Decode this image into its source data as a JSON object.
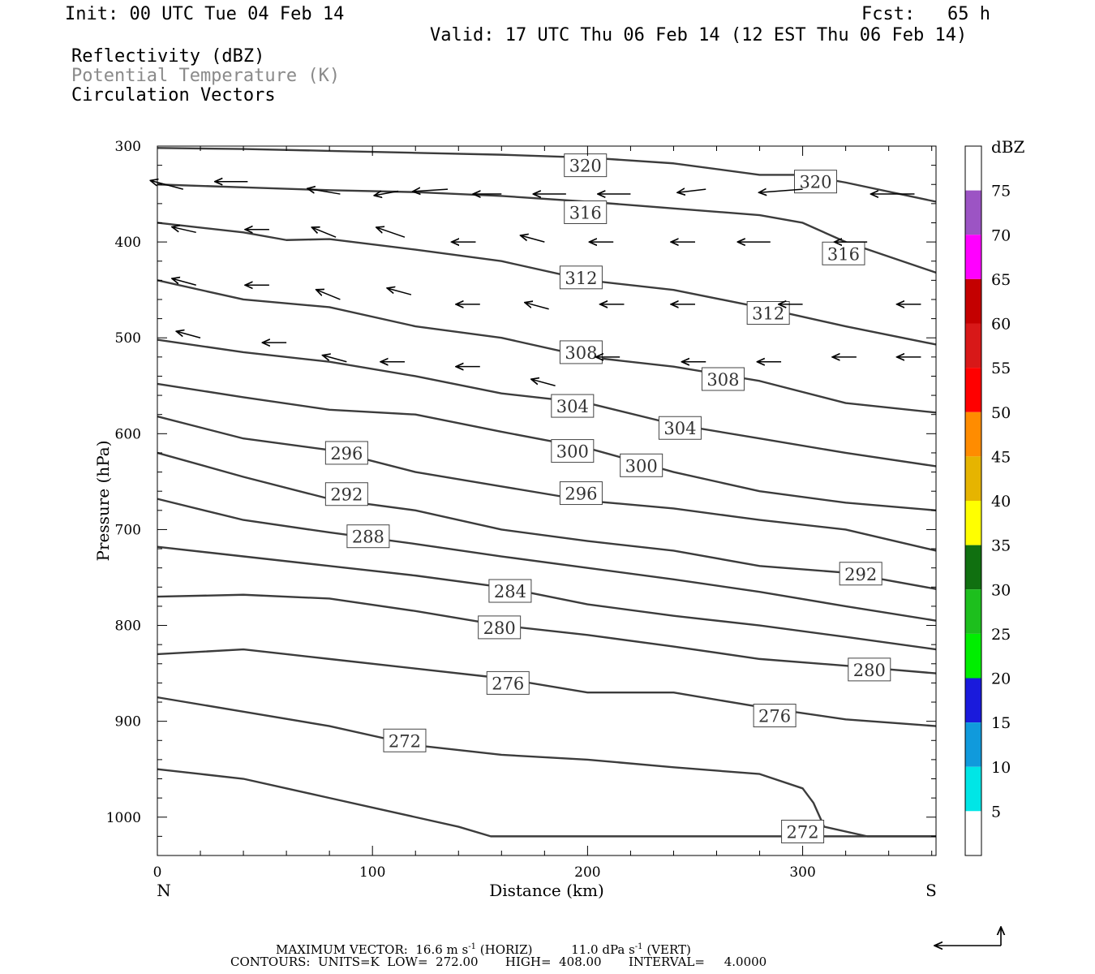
{
  "header": {
    "init": "Init: 00 UTC Tue 04 Feb 14",
    "fcst": "Fcst:   65 h",
    "valid": "Valid: 17 UTC Thu 06 Feb 14 (12 EST Thu 06 Feb 14)",
    "field1": "Reflectivity (dBZ)",
    "field2": "Potential Temperature (K)",
    "field3": "Circulation Vectors"
  },
  "colors": {
    "field2_text": "#8a8a8a",
    "contour": "#3c3c3c",
    "vector": "#000000"
  },
  "chart_data": {
    "type": "line",
    "xlabel": "Distance (km)",
    "ylabel": "Pressure (hPa)",
    "xlim": [
      0,
      362
    ],
    "ylim": [
      1040,
      300
    ],
    "x_ticks": [
      "0",
      "100",
      "200",
      "300"
    ],
    "y_ticks": [
      "300",
      "400",
      "500",
      "600",
      "700",
      "800",
      "900",
      "1000"
    ],
    "x_end_labels": {
      "left": "N",
      "right": "S"
    },
    "x_tick_values": [
      0,
      100,
      200,
      300
    ],
    "y_tick_values": [
      300,
      400,
      500,
      600,
      700,
      800,
      900,
      1000
    ],
    "contour_units": "K",
    "contours": [
      {
        "theta": "320",
        "x": [
          0,
          40,
          80,
          120,
          160,
          200,
          240,
          280,
          300,
          320,
          362
        ],
        "p": [
          302,
          303,
          305,
          307,
          309,
          312,
          318,
          330,
          330,
          338,
          358
        ],
        "labels": [
          {
            "x": 199,
            "p": 320
          },
          {
            "x": 306,
            "p": 337
          }
        ]
      },
      {
        "theta": "316",
        "x": [
          0,
          40,
          80,
          120,
          160,
          200,
          240,
          280,
          300,
          320,
          362
        ],
        "p": [
          340,
          343,
          346,
          348,
          352,
          358,
          365,
          372,
          380,
          400,
          432
        ],
        "labels": [
          {
            "x": 199,
            "p": 369
          },
          {
            "x": 319,
            "p": 412
          }
        ]
      },
      {
        "theta": "312",
        "x": [
          0,
          40,
          60,
          80,
          120,
          160,
          200,
          240,
          280,
          320,
          362
        ],
        "p": [
          380,
          390,
          398,
          397,
          408,
          420,
          440,
          450,
          468,
          488,
          507
        ],
        "labels": [
          {
            "x": 197,
            "p": 437
          },
          {
            "x": 284,
            "p": 474
          }
        ]
      },
      {
        "theta": "308",
        "x": [
          0,
          40,
          80,
          120,
          160,
          200,
          240,
          280,
          320,
          362
        ],
        "p": [
          440,
          460,
          468,
          488,
          500,
          520,
          530,
          545,
          568,
          578
        ],
        "labels": [
          {
            "x": 197,
            "p": 515
          },
          {
            "x": 263,
            "p": 543
          }
        ]
      },
      {
        "theta": "304",
        "x": [
          0,
          40,
          80,
          120,
          160,
          200,
          240,
          280,
          320,
          362
        ],
        "p": [
          502,
          515,
          525,
          540,
          558,
          568,
          590,
          605,
          620,
          634
        ],
        "labels": [
          {
            "x": 193,
            "p": 571
          },
          {
            "x": 243,
            "p": 594
          }
        ]
      },
      {
        "theta": "300",
        "x": [
          0,
          40,
          80,
          120,
          160,
          200,
          240,
          280,
          320,
          362
        ],
        "p": [
          548,
          562,
          575,
          580,
          598,
          615,
          640,
          660,
          672,
          680
        ],
        "labels": [
          {
            "x": 193,
            "p": 618
          },
          {
            "x": 225,
            "p": 633
          }
        ]
      },
      {
        "theta": "296",
        "x": [
          0,
          40,
          80,
          120,
          160,
          200,
          240,
          280,
          320,
          362
        ],
        "p": [
          582,
          605,
          617,
          640,
          655,
          670,
          678,
          690,
          700,
          722
        ],
        "labels": [
          {
            "x": 88,
            "p": 620
          },
          {
            "x": 197,
            "p": 662
          }
        ]
      },
      {
        "theta": "292",
        "x": [
          0,
          40,
          80,
          120,
          160,
          200,
          240,
          280,
          320,
          362
        ],
        "p": [
          620,
          645,
          668,
          680,
          700,
          712,
          722,
          738,
          745,
          762
        ],
        "labels": [
          {
            "x": 88,
            "p": 663
          },
          {
            "x": 327,
            "p": 746
          }
        ]
      },
      {
        "theta": "288",
        "x": [
          0,
          40,
          80,
          120,
          160,
          200,
          240,
          280,
          320,
          362
        ],
        "p": [
          668,
          690,
          703,
          715,
          728,
          740,
          752,
          765,
          780,
          795
        ],
        "labels": [
          {
            "x": 98,
            "p": 707
          }
        ]
      },
      {
        "theta": "284",
        "x": [
          0,
          40,
          80,
          120,
          160,
          200,
          240,
          280,
          320,
          362
        ],
        "p": [
          718,
          728,
          738,
          748,
          760,
          778,
          790,
          800,
          812,
          825
        ],
        "labels": [
          {
            "x": 164,
            "p": 764
          }
        ]
      },
      {
        "theta": "280",
        "x": [
          0,
          40,
          80,
          120,
          160,
          200,
          240,
          280,
          320,
          362
        ],
        "p": [
          770,
          768,
          772,
          785,
          800,
          810,
          822,
          835,
          842,
          850
        ],
        "labels": [
          {
            "x": 159,
            "p": 802
          },
          {
            "x": 331,
            "p": 846
          }
        ]
      },
      {
        "theta": "276",
        "x": [
          0,
          40,
          60,
          80,
          120,
          160,
          200,
          240,
          280,
          320,
          362
        ],
        "p": [
          830,
          825,
          830,
          835,
          845,
          855,
          870,
          870,
          885,
          898,
          905
        ],
        "labels": [
          {
            "x": 163,
            "p": 860
          },
          {
            "x": 287,
            "p": 894
          }
        ]
      },
      {
        "theta": "272",
        "x": [
          0,
          40,
          80,
          120,
          160,
          200,
          240,
          280,
          300,
          305,
          310,
          330,
          362
        ],
        "p": [
          875,
          890,
          905,
          925,
          935,
          940,
          948,
          955,
          970,
          985,
          1010,
          1020,
          1020
        ],
        "labels": [
          {
            "x": 115,
            "p": 920
          },
          {
            "x": 300,
            "p": 1015
          }
        ]
      },
      {
        "theta": "",
        "x": [
          0,
          20,
          40,
          60,
          80,
          100,
          120,
          140,
          155,
          200,
          362
        ],
        "p": [
          950,
          955,
          960,
          970,
          980,
          990,
          1000,
          1010,
          1020,
          1020,
          1020
        ]
      }
    ],
    "vectors_note": "Circulation vectors: u (m/s) horizontal, omega (dPa/s) vertical; reference vector at lower right.",
    "vectors": [
      [
        12,
        345,
        -30,
        -8
      ],
      [
        42,
        337,
        -30,
        0
      ],
      [
        85,
        350,
        -30,
        -5
      ],
      [
        112,
        347,
        -22,
        4
      ],
      [
        135,
        345,
        -32,
        2
      ],
      [
        160,
        350,
        -26,
        0
      ],
      [
        190,
        350,
        -30,
        0
      ],
      [
        220,
        350,
        -30,
        0
      ],
      [
        255,
        345,
        -26,
        3
      ],
      [
        300,
        345,
        -40,
        3
      ],
      [
        352,
        350,
        -40,
        0
      ],
      [
        18,
        390,
        -22,
        -5
      ],
      [
        52,
        387,
        -22,
        0
      ],
      [
        83,
        395,
        -22,
        -9
      ],
      [
        115,
        395,
        -26,
        -9
      ],
      [
        148,
        400,
        -22,
        0
      ],
      [
        180,
        400,
        -22,
        -6
      ],
      [
        212,
        400,
        -22,
        0
      ],
      [
        250,
        400,
        -22,
        0
      ],
      [
        285,
        400,
        -30,
        0
      ],
      [
        330,
        400,
        -30,
        0
      ],
      [
        18,
        445,
        -22,
        -6
      ],
      [
        52,
        445,
        -22,
        0
      ],
      [
        85,
        460,
        -22,
        -9
      ],
      [
        118,
        455,
        -22,
        -6
      ],
      [
        150,
        465,
        -22,
        0
      ],
      [
        182,
        470,
        -22,
        -6
      ],
      [
        217,
        465,
        -22,
        0
      ],
      [
        250,
        465,
        -22,
        0
      ],
      [
        300,
        465,
        -22,
        0
      ],
      [
        355,
        465,
        -22,
        0
      ],
      [
        20,
        500,
        -22,
        -6
      ],
      [
        60,
        505,
        -22,
        0
      ],
      [
        88,
        525,
        -22,
        -6
      ],
      [
        115,
        525,
        -22,
        0
      ],
      [
        150,
        530,
        -22,
        0
      ],
      [
        185,
        550,
        -22,
        -6
      ],
      [
        215,
        520,
        -22,
        0
      ],
      [
        255,
        525,
        -22,
        0
      ],
      [
        290,
        525,
        -22,
        0
      ],
      [
        325,
        520,
        -22,
        0
      ],
      [
        355,
        520,
        -22,
        0
      ]
    ],
    "dbz_scale": {
      "unit": "dBZ",
      "labels": [
        "75",
        "70",
        "65",
        "60",
        "55",
        "50",
        "45",
        "40",
        "35",
        "30",
        "25",
        "20",
        "15",
        "10",
        "5"
      ],
      "colors": [
        "#ffffff",
        "#9c54c4",
        "#ff00ff",
        "#c40000",
        "#d81818",
        "#ff0000",
        "#ff8c00",
        "#e6b400",
        "#ffff00",
        "#107010",
        "#1dbf1d",
        "#00ee00",
        "#1a1adc",
        "#109adc",
        "#00e6e6",
        "#ffffff"
      ]
    }
  },
  "footer": {
    "line1_a": "MAXIMUM VECTOR:",
    "line1_b": "16.6 m s",
    "line1_b_exp": "-1",
    "line1_c": " (HORIZ)",
    "line1_d": "11.0 dPa s",
    "line1_d_exp": "-1",
    "line1_e": " (VERT)",
    "line2": "CONTOURS:  UNITS=K  LOW=  272.00       HIGH=  408.00       INTERVAL=     4.0000"
  }
}
